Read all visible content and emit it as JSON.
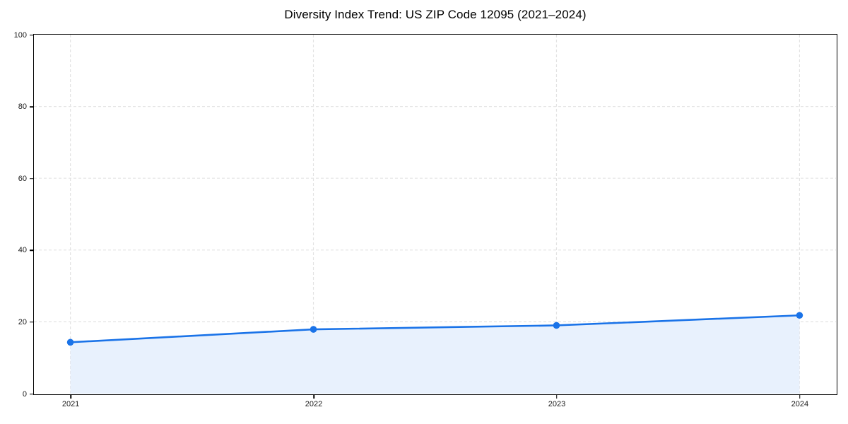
{
  "chart_data": {
    "type": "line",
    "title": "Diversity Index Trend: US ZIP Code 12095 (2021–2024)",
    "categories": [
      "2021",
      "2022",
      "2023",
      "2024"
    ],
    "series": [
      {
        "name": "Diversity Index",
        "values": [
          14.3,
          17.9,
          19.0,
          21.8
        ]
      }
    ],
    "xlabel": "",
    "ylabel": "",
    "ylim": [
      0,
      100
    ],
    "yticks": [
      0,
      20,
      40,
      60,
      80,
      100
    ],
    "grid": "dashed, horizontal and vertical",
    "legend_position": "none",
    "area_fill": true,
    "marker": "circle",
    "colors": {
      "line": "#1a73e8",
      "marker": "#1a73e8",
      "area_fill": "#e8f1fd",
      "gridline": "#e3e3e3",
      "frame": "#000000",
      "text": "#000000",
      "background": "#ffffff"
    }
  }
}
